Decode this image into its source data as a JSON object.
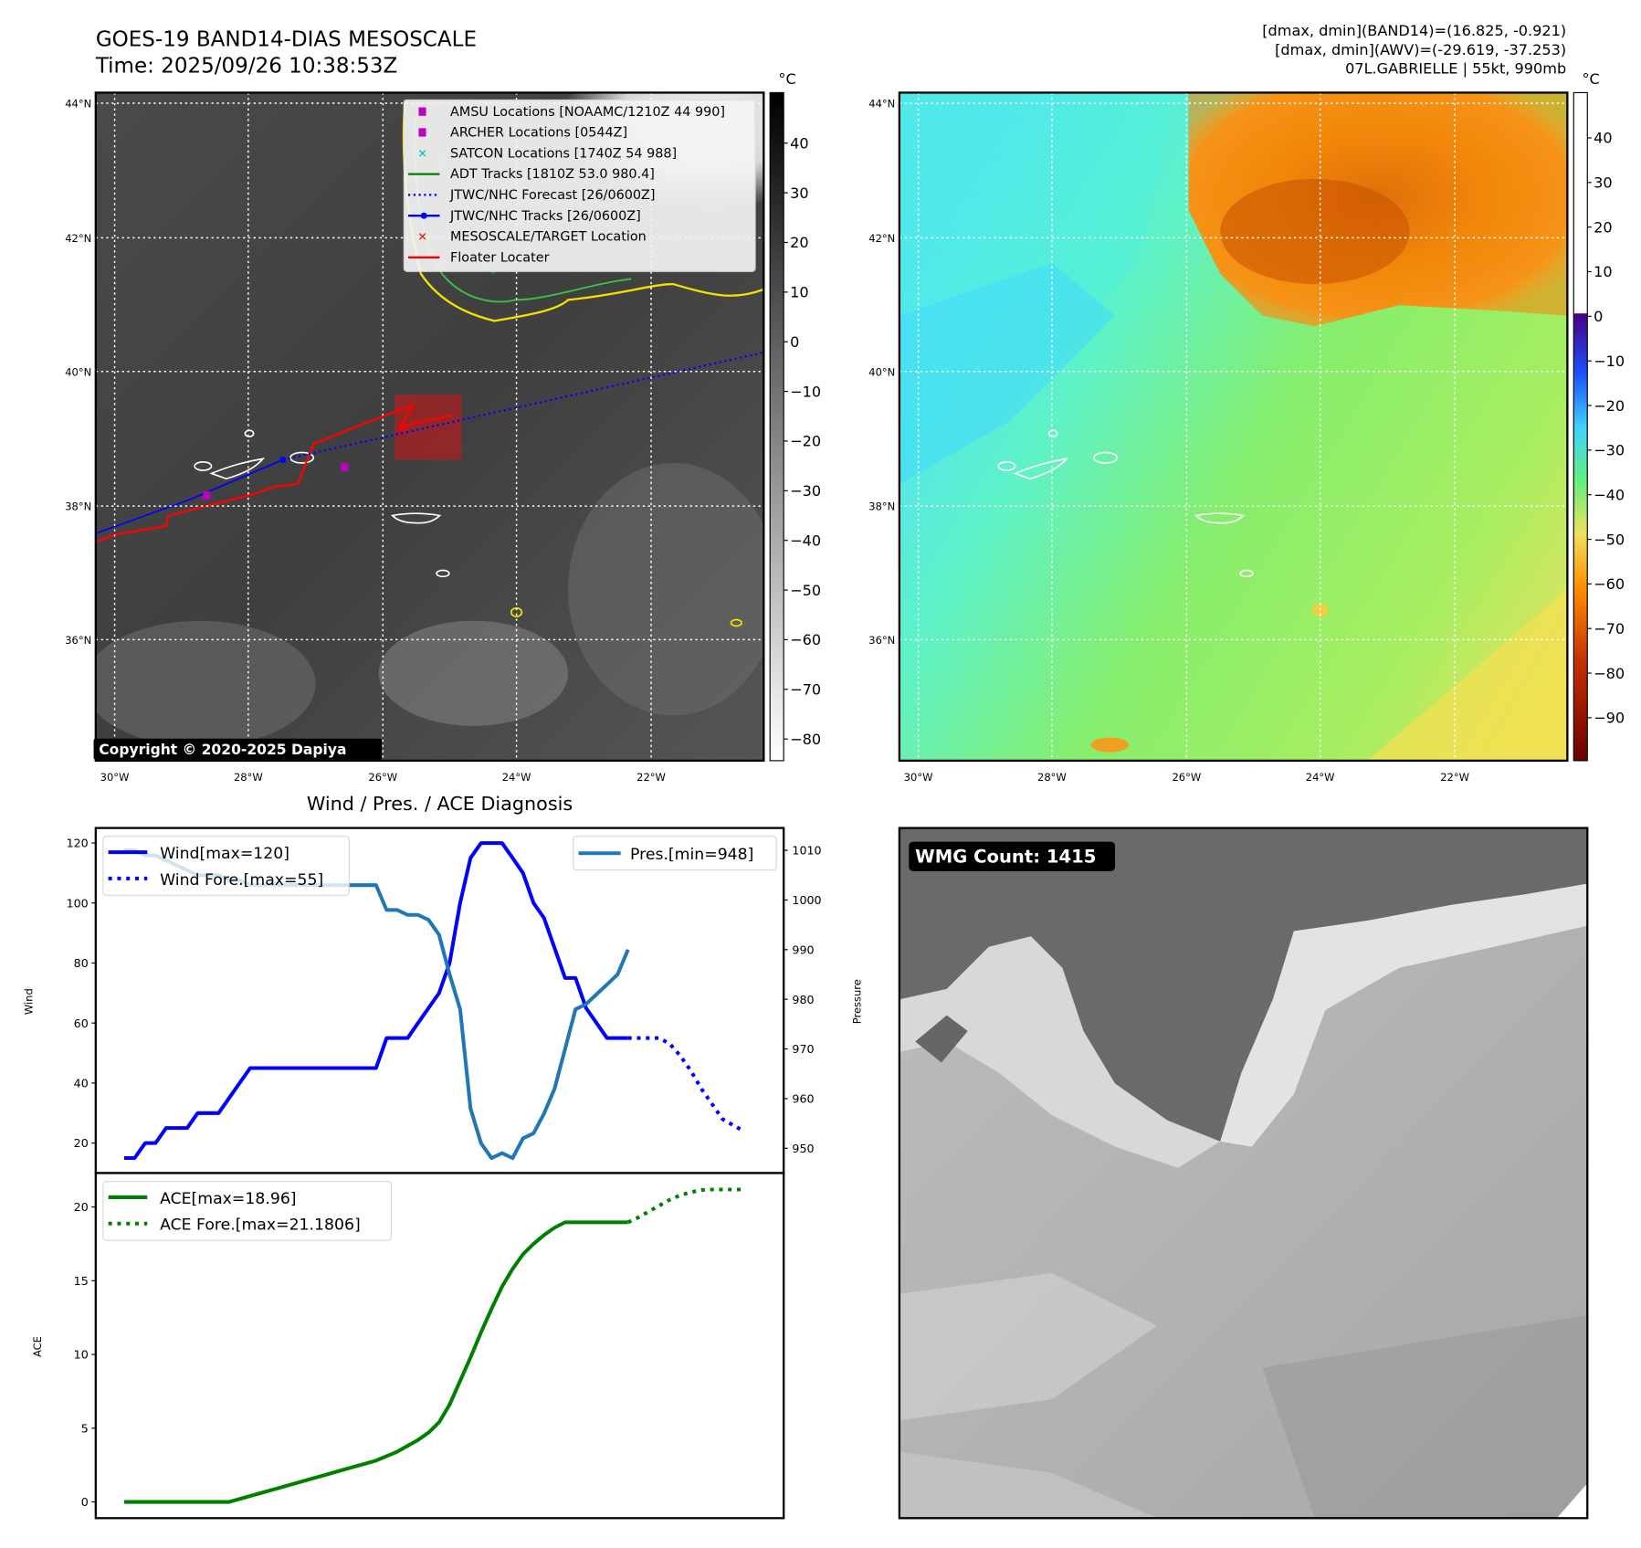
{
  "title": {
    "line1": "GOES-19 BAND14-DIAS MESOSCALE",
    "line2": "Time: 2025/09/26 10:38:53Z"
  },
  "info": {
    "band14": "[dmax, dmin](BAND14)=(16.825, -0.921)",
    "awv": "[dmax, dmin](AWV)=(-29.619, -37.253)",
    "storm": "07L.GABRIELLE | 55kt, 990mb"
  },
  "map": {
    "lat_labels": [
      "44°N",
      "42°N",
      "40°N",
      "38°N",
      "36°N"
    ],
    "lon_labels": [
      "30°W",
      "28°W",
      "26°W",
      "24°W",
      "22°W"
    ],
    "unit": "°C",
    "left_cbar_ticks": [
      "40",
      "30",
      "20",
      "10",
      "0",
      "−10",
      "−20",
      "−30",
      "−40",
      "−50",
      "−60",
      "−70",
      "−80"
    ],
    "right_cbar_ticks": [
      "40",
      "30",
      "20",
      "10",
      "0",
      "−10",
      "−20",
      "−30",
      "−40",
      "−50",
      "−60",
      "−70",
      "−80",
      "−90"
    ],
    "copyright": "Copyright © 2020-2025 Dapiya",
    "legend": [
      {
        "label": "AMSU Locations [NOAAMC/1210Z 44 990]",
        "color": "#c000c0"
      },
      {
        "label": "ARCHER Locations [0544Z]",
        "color": "#c000c0"
      },
      {
        "label": "SATCON Locations [1740Z 54 988]",
        "color": "#00bfbf"
      },
      {
        "label": "ADT Tracks [1810Z 53.0 980.4]",
        "color": "#008000"
      },
      {
        "label": "JTWC/NHC Forecast [26/0600Z]",
        "color": "#0000ff"
      },
      {
        "label": "JTWC/NHC Tracks [26/0600Z]",
        "color": "#0000ff"
      },
      {
        "label": "MESOSCALE/TARGET Location",
        "color": "#ff0000"
      },
      {
        "label": "Floater Locater",
        "color": "#ff0000"
      }
    ]
  },
  "wmg": {
    "label": "WMG Count: 1415"
  },
  "chart_data": {
    "type": "line",
    "title": "Wind / Pres. / ACE Diagnosis",
    "wind_axis": {
      "label": "Wind",
      "ticks": [
        "20",
        "40",
        "60",
        "80",
        "100",
        "120"
      ],
      "ylim": [
        10,
        125
      ]
    },
    "pressure_axis": {
      "label": "Pressure",
      "ticks": [
        "950",
        "960",
        "970",
        "980",
        "990",
        "1000",
        "1010"
      ],
      "ylim": [
        945,
        1014.5
      ]
    },
    "ace_axis": {
      "label": "ACE",
      "ticks": [
        "0",
        "5",
        "10",
        "15",
        "20"
      ],
      "ylim": [
        -1.1,
        22.3
      ]
    },
    "legend_wind": [
      "Wind[max=120]",
      "Wind Fore.[max=55]"
    ],
    "legend_pres": [
      "Pres.[min=948]"
    ],
    "legend_ace": [
      "ACE[max=18.96]",
      "ACE Fore.[max=21.1806]"
    ],
    "colors": {
      "wind": "#0000ff",
      "pressure": "#1f77b4",
      "ace": "#008000"
    },
    "series": [
      {
        "name": "Wind",
        "start": 0,
        "values": [
          15,
          15,
          20,
          20,
          25,
          25,
          25,
          30,
          30,
          30,
          35,
          40,
          45,
          45,
          45,
          45,
          45,
          45,
          45,
          45,
          45,
          45,
          45,
          45,
          45,
          55,
          55,
          55,
          60,
          65,
          70,
          80,
          100,
          115,
          120,
          120,
          120,
          115,
          110,
          100,
          95,
          85,
          75,
          75,
          65,
          60,
          55,
          55,
          55
        ]
      },
      {
        "name": "Wind Fore.",
        "start": 48,
        "values": [
          55,
          55,
          55,
          55,
          53,
          49,
          44,
          38,
          33,
          28,
          26,
          24
        ]
      },
      {
        "name": "Pres.",
        "start": 0,
        "values": [
          1010,
          1010,
          1009,
          1009,
          1008,
          1007,
          1006,
          1005,
          1005,
          1005,
          1004,
          1004,
          1003,
          1003,
          1003,
          1003,
          1003,
          1003,
          1003,
          1003,
          1003,
          1003,
          1003,
          1003,
          1003,
          998,
          998,
          997,
          997,
          996,
          993,
          985,
          978,
          958,
          951,
          948,
          949,
          948,
          952,
          953,
          957,
          962,
          970,
          978,
          979,
          981,
          983,
          985,
          990
        ]
      },
      {
        "name": "ACE",
        "start": 0,
        "values": [
          0,
          0,
          0,
          0,
          0,
          0,
          0,
          0,
          0,
          0,
          0,
          0.2,
          0.4,
          0.6,
          0.8,
          1.0,
          1.2,
          1.4,
          1.6,
          1.8,
          2.0,
          2.2,
          2.4,
          2.6,
          2.8,
          3.1,
          3.4,
          3.8,
          4.2,
          4.7,
          5.4,
          6.6,
          8.2,
          9.8,
          11.5,
          13.1,
          14.6,
          15.8,
          16.8,
          17.5,
          18.1,
          18.6,
          18.96,
          18.96,
          18.96,
          18.96,
          18.96,
          18.96,
          18.96
        ]
      },
      {
        "name": "ACE Fore.",
        "start": 48,
        "values": [
          18.96,
          19.3,
          19.7,
          20.1,
          20.5,
          20.8,
          21.0,
          21.15,
          21.18,
          21.18,
          21.18,
          21.18
        ]
      }
    ]
  }
}
